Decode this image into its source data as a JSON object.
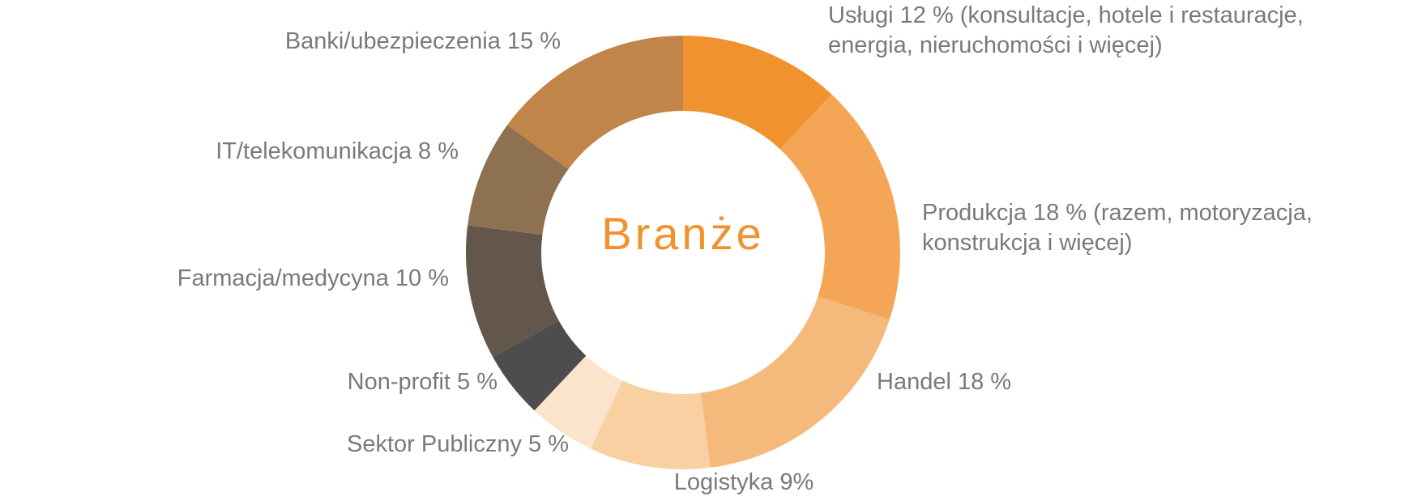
{
  "chart_data": {
    "type": "pie",
    "title": "Branże",
    "title_color": "#F0922D",
    "donut": true,
    "slices": [
      {
        "label_lines": [
          "Usługi 12 % (konsultacje, hotele i restauracje,",
          "energia, nieruchomości i więcej)"
        ],
        "value": 12,
        "color": "#F0922D"
      },
      {
        "label_lines": [
          "Produkcja 18 % (razem, motoryzacja,",
          "konstrukcja i więcej)"
        ],
        "value": 18,
        "color": "#F4A656"
      },
      {
        "label_lines": [
          "Handel 18 %"
        ],
        "value": 18,
        "color": "#F5B97C"
      },
      {
        "label_lines": [
          "Logistyka  9%"
        ],
        "value": 9,
        "color": "#F8D0A1"
      },
      {
        "label_lines": [
          "Sektor Publiczny 5 %"
        ],
        "value": 5,
        "color": "#FBE4CB"
      },
      {
        "label_lines": [
          "Non-profit 5 %"
        ],
        "value": 5,
        "color": "#4D4D4D"
      },
      {
        "label_lines": [
          "Farmacja/medycyna 10 %"
        ],
        "value": 10,
        "color": "#62574A"
      },
      {
        "label_lines": [
          "IT/telekomunikacja 8 %"
        ],
        "value": 8,
        "color": "#8E7152"
      },
      {
        "label_lines": [
          "Banki/ubezpieczenia 15 %"
        ],
        "value": 15,
        "color": "#C1854A"
      }
    ]
  }
}
